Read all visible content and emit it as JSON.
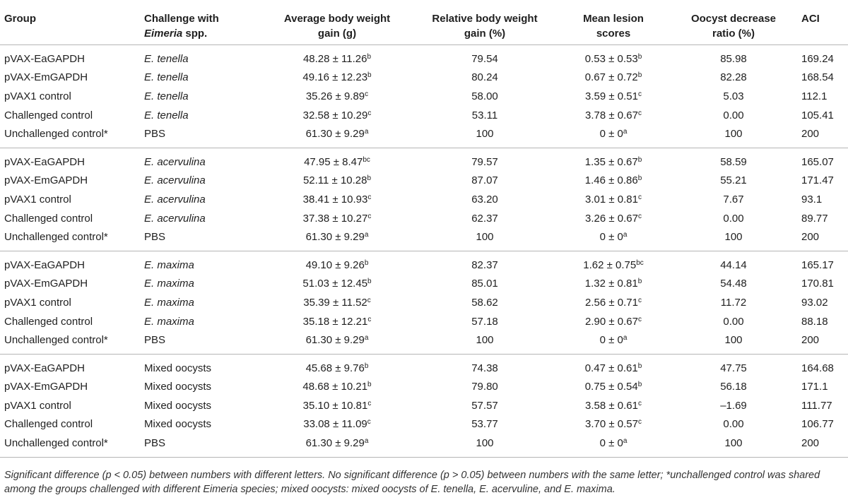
{
  "headers": {
    "group": "Group",
    "challenge_line1": "Challenge with",
    "challenge_italic": "Eimeria",
    "challenge_rest": " spp.",
    "abwg_line1": "Average body weight",
    "abwg_line2": "gain (g)",
    "rbwg_line1": "Relative body weight",
    "rbwg_line2": "gain (%)",
    "mls_line1": "Mean lesion",
    "mls_line2": "scores",
    "odr_line1": "Oocyst decrease",
    "odr_line2": "ratio (%)",
    "aci": "ACI"
  },
  "groups": [
    {
      "rows": [
        {
          "group": "pVAX-EaGAPDH",
          "challenge": "E. tenella",
          "abwg": "48.28 ± 11.26",
          "abwg_sup": "b",
          "rbwg": "79.54",
          "mls": "0.53 ± 0.53",
          "mls_sup": "b",
          "odr": "85.98",
          "aci": "169.24"
        },
        {
          "group": "pVAX-EmGAPDH",
          "challenge": "E. tenella",
          "abwg": "49.16 ± 12.23",
          "abwg_sup": "b",
          "rbwg": "80.24",
          "mls": "0.67 ± 0.72",
          "mls_sup": "b",
          "odr": "82.28",
          "aci": "168.54"
        },
        {
          "group": "pVAX1 control",
          "challenge": "E. tenella",
          "abwg": "35.26 ± 9.89",
          "abwg_sup": "c",
          "rbwg": "58.00",
          "mls": "3.59 ± 0.51",
          "mls_sup": "c",
          "odr": "5.03",
          "aci": "112.1"
        },
        {
          "group": "Challenged control",
          "challenge": "E. tenella",
          "abwg": "32.58 ± 10.29",
          "abwg_sup": "c",
          "rbwg": "53.11",
          "mls": "3.78 ± 0.67",
          "mls_sup": "c",
          "odr": "0.00",
          "aci": "105.41"
        },
        {
          "group": "Unchallenged control*",
          "challenge": "PBS",
          "abwg": "61.30 ± 9.29",
          "abwg_sup": "a",
          "rbwg": "100",
          "mls": "0 ± 0",
          "mls_sup": "a",
          "odr": "100",
          "aci": "200"
        }
      ]
    },
    {
      "rows": [
        {
          "group": "pVAX-EaGAPDH",
          "challenge": "E. acervulina",
          "abwg": "47.95 ± 8.47",
          "abwg_sup": "bc",
          "rbwg": "79.57",
          "mls": "1.35 ± 0.67",
          "mls_sup": "b",
          "odr": "58.59",
          "aci": "165.07"
        },
        {
          "group": "pVAX-EmGAPDH",
          "challenge": "E. acervulina",
          "abwg": "52.11 ± 10.28",
          "abwg_sup": "b",
          "rbwg": "87.07",
          "mls": "1.46 ± 0.86",
          "mls_sup": "b",
          "odr": "55.21",
          "aci": "171.47"
        },
        {
          "group": "pVAX1 control",
          "challenge": "E. acervulina",
          "abwg": "38.41 ± 10.93",
          "abwg_sup": "c",
          "rbwg": "63.20",
          "mls": "3.01 ± 0.81",
          "mls_sup": "c",
          "odr": "7.67",
          "aci": "93.1"
        },
        {
          "group": "Challenged control",
          "challenge": "E. acervulina",
          "abwg": "37.38 ± 10.27",
          "abwg_sup": "c",
          "rbwg": "62.37",
          "mls": "3.26 ± 0.67",
          "mls_sup": "c",
          "odr": "0.00",
          "aci": "89.77"
        },
        {
          "group": "Unchallenged control*",
          "challenge": "PBS",
          "abwg": "61.30 ± 9.29",
          "abwg_sup": "a",
          "rbwg": "100",
          "mls": "0 ± 0",
          "mls_sup": "a",
          "odr": "100",
          "aci": "200"
        }
      ]
    },
    {
      "rows": [
        {
          "group": "pVAX-EaGAPDH",
          "challenge": "E. maxima",
          "abwg": "49.10 ± 9.26",
          "abwg_sup": "b",
          "rbwg": "82.37",
          "mls": "1.62 ± 0.75",
          "mls_sup": "bc",
          "odr": "44.14",
          "aci": "165.17"
        },
        {
          "group": "pVAX-EmGAPDH",
          "challenge": "E. maxima",
          "abwg": "51.03 ± 12.45",
          "abwg_sup": "b",
          "rbwg": "85.01",
          "mls": "1.32 ± 0.81",
          "mls_sup": "b",
          "odr": "54.48",
          "aci": "170.81"
        },
        {
          "group": "pVAX1 control",
          "challenge": "E. maxima",
          "abwg": "35.39 ± 11.52",
          "abwg_sup": "c",
          "rbwg": "58.62",
          "mls": "2.56 ± 0.71",
          "mls_sup": "c",
          "odr": "11.72",
          "aci": "93.02"
        },
        {
          "group": "Challenged control",
          "challenge": "E. maxima",
          "abwg": "35.18 ± 12.21",
          "abwg_sup": "c",
          "rbwg": "57.18",
          "mls": "2.90 ± 0.67",
          "mls_sup": "c",
          "odr": "0.00",
          "aci": "88.18"
        },
        {
          "group": "Unchallenged control*",
          "challenge": "PBS",
          "abwg": "61.30 ± 9.29",
          "abwg_sup": "a",
          "rbwg": "100",
          "mls": "0 ± 0",
          "mls_sup": "a",
          "odr": "100",
          "aci": "200"
        }
      ]
    },
    {
      "rows": [
        {
          "group": "pVAX-EaGAPDH",
          "challenge": "Mixed oocysts",
          "abwg": "45.68 ± 9.76",
          "abwg_sup": "b",
          "rbwg": "74.38",
          "mls": "0.47 ± 0.61",
          "mls_sup": "b",
          "odr": "47.75",
          "aci": "164.68"
        },
        {
          "group": "pVAX-EmGAPDH",
          "challenge": "Mixed oocysts",
          "abwg": "48.68 ± 10.21",
          "abwg_sup": "b",
          "rbwg": "79.80",
          "mls": "0.75 ± 0.54",
          "mls_sup": "b",
          "odr": "56.18",
          "aci": "171.1"
        },
        {
          "group": "pVAX1 control",
          "challenge": "Mixed oocysts",
          "abwg": "35.10 ± 10.81",
          "abwg_sup": "c",
          "rbwg": "57.57",
          "mls": "3.58 ± 0.61",
          "mls_sup": "c",
          "odr": "–1.69",
          "aci": "111.77"
        },
        {
          "group": "Challenged control",
          "challenge": "Mixed oocysts",
          "abwg": "33.08 ± 11.09",
          "abwg_sup": "c",
          "rbwg": "53.77",
          "mls": "3.70 ± 0.57",
          "mls_sup": "c",
          "odr": "0.00",
          "aci": "106.77"
        },
        {
          "group": "Unchallenged control*",
          "challenge": "PBS",
          "abwg": "61.30 ± 9.29",
          "abwg_sup": "a",
          "rbwg": "100",
          "mls": "0 ± 0",
          "mls_sup": "a",
          "odr": "100",
          "aci": "200"
        }
      ]
    }
  ],
  "footnote": "Significant difference (p < 0.05) between numbers with different letters. No significant difference (p > 0.05) between numbers with the same letter; *unchallenged control was shared among the groups challenged with different Eimeria species; mixed oocysts: mixed oocysts of E. tenella, E. acervuline, and E. maxima."
}
